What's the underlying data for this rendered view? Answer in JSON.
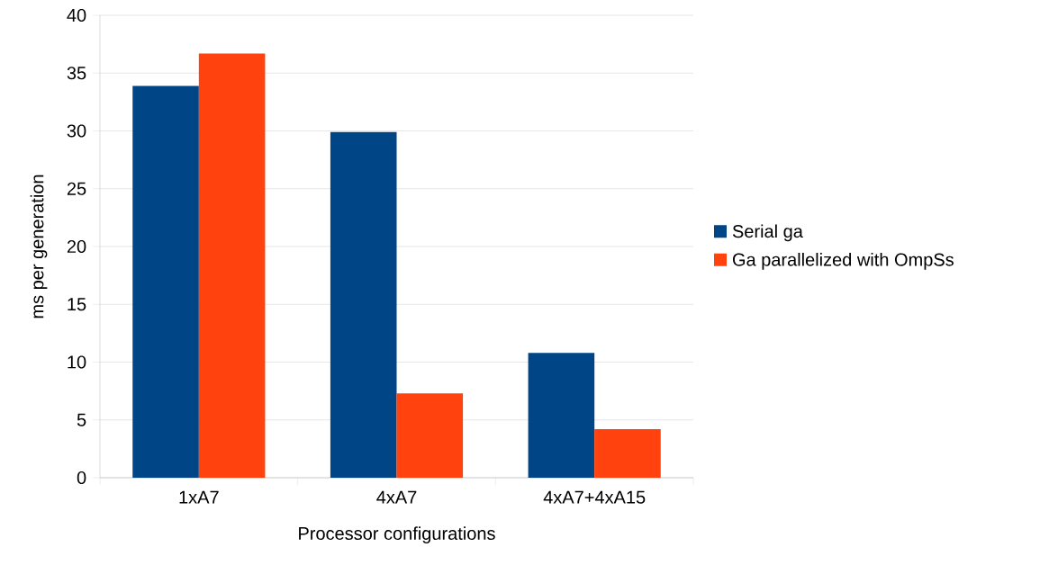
{
  "chart_data": {
    "type": "bar",
    "xlabel": "Processor configurations",
    "ylabel": "ms per generation",
    "categories": [
      "1xA7",
      "4xA7",
      "4xA7+4xA15"
    ],
    "series": [
      {
        "name": "Serial ga",
        "color": "#004586",
        "values": [
          33.9,
          29.9,
          10.8
        ]
      },
      {
        "name": "Ga parallelized with OmpSs",
        "color": "#ff420e",
        "values": [
          36.7,
          7.3,
          4.2
        ]
      }
    ],
    "ylim": [
      0,
      40
    ],
    "yticks": [
      0,
      5,
      10,
      15,
      20,
      25,
      30,
      35,
      40
    ],
    "grid": "y",
    "legend": "right"
  }
}
